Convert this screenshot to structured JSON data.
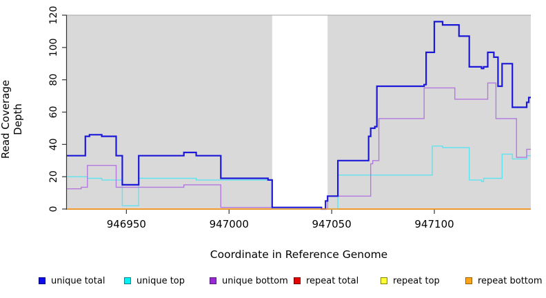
{
  "axes": {
    "xlabel": "Coordinate in Reference Genome",
    "ylabel": "Read Coverage Depth",
    "xlim": [
      946921,
      947147
    ],
    "ylim": [
      0,
      120
    ],
    "xticks": [
      946950,
      947000,
      947050,
      947100
    ],
    "yticks": [
      0,
      20,
      40,
      60,
      80,
      100,
      120
    ],
    "plot_bg": "#d9d9d9",
    "mask_fill": "#ffffff",
    "axis_color": "#333333"
  },
  "chart_data": {
    "type": "line",
    "step_mode": "step-after",
    "title": "",
    "xlabel": "Coordinate in Reference Genome",
    "ylabel": "Read Coverage Depth",
    "xlim": [
      946921,
      947147
    ],
    "ylim": [
      0,
      120
    ],
    "grid": false,
    "masked_region": {
      "from": 947021,
      "to": 947048,
      "note": "white band over gray plot background"
    },
    "series": [
      {
        "name": "repeat total",
        "color": "#dd1111",
        "width": 1.3,
        "points": [
          [
            946921,
            0
          ]
        ]
      },
      {
        "name": "repeat top",
        "color": "#f5f500",
        "width": 1.3,
        "points": [
          [
            946921,
            0
          ]
        ]
      },
      {
        "name": "unique top",
        "color": "#5fe3ef",
        "width": 1.4,
        "points": [
          [
            946921,
            20
          ],
          [
            946931,
            19
          ],
          [
            946938,
            18
          ],
          [
            946948,
            2
          ],
          [
            946956,
            19
          ],
          [
            946984,
            18
          ],
          [
            947021,
            0
          ],
          [
            947053,
            21
          ],
          [
            947099,
            39
          ],
          [
            947104,
            38
          ],
          [
            947117,
            18
          ],
          [
            947123,
            17
          ],
          [
            947124,
            19
          ],
          [
            947133,
            34
          ],
          [
            947138,
            31
          ],
          [
            947145,
            33
          ]
        ]
      },
      {
        "name": "unique bottom",
        "color": "#b377e0",
        "width": 1.4,
        "points": [
          [
            946921,
            12.5
          ],
          [
            946928,
            13.5
          ],
          [
            946931,
            27
          ],
          [
            946945,
            13.5
          ],
          [
            946978,
            15
          ],
          [
            946996,
            1
          ],
          [
            947045,
            0
          ],
          [
            947048,
            8
          ],
          [
            947069,
            28
          ],
          [
            947070,
            30
          ],
          [
            947073,
            56
          ],
          [
            947095,
            75
          ],
          [
            947110,
            68
          ],
          [
            947126,
            78
          ],
          [
            947130,
            56
          ],
          [
            947140,
            32
          ],
          [
            947145,
            37
          ]
        ]
      },
      {
        "name": "unique total",
        "color": "#1c18d8",
        "width": 2.2,
        "points": [
          [
            946921,
            33
          ],
          [
            946930,
            45
          ],
          [
            946932,
            46
          ],
          [
            946938,
            45
          ],
          [
            946945,
            33
          ],
          [
            946948,
            15
          ],
          [
            946956,
            33
          ],
          [
            946978,
            35
          ],
          [
            946984,
            33
          ],
          [
            946996,
            19
          ],
          [
            947019,
            18
          ],
          [
            947021,
            1
          ],
          [
            947045,
            0
          ],
          [
            947047,
            5
          ],
          [
            947048,
            8
          ],
          [
            947053,
            30
          ],
          [
            947068,
            45
          ],
          [
            947069,
            50
          ],
          [
            947071,
            51
          ],
          [
            947072,
            76
          ],
          [
            947095,
            77
          ],
          [
            947096,
            97
          ],
          [
            947100,
            116
          ],
          [
            947104,
            114
          ],
          [
            947112,
            107
          ],
          [
            947117,
            88
          ],
          [
            947123,
            87
          ],
          [
            947124,
            88
          ],
          [
            947126,
            97
          ],
          [
            947129,
            94
          ],
          [
            947131,
            76
          ],
          [
            947133,
            90
          ],
          [
            947138,
            63
          ],
          [
            947145,
            66
          ],
          [
            947146,
            69
          ]
        ]
      },
      {
        "name": "repeat bottom",
        "color": "#ff9d1e",
        "width": 1.6,
        "points": [
          [
            946921,
            0
          ]
        ]
      }
    ]
  },
  "legend": {
    "items": [
      {
        "label": "unique total",
        "fill": "#0d0deb",
        "border": "#000080"
      },
      {
        "label": "unique top",
        "fill": "#00f2f2",
        "border": "#0a7d8c"
      },
      {
        "label": "unique bottom",
        "fill": "#9929d4",
        "border": "#551880"
      },
      {
        "label": "repeat total",
        "fill": "#e80000",
        "border": "#7a0000"
      },
      {
        "label": "repeat top",
        "fill": "#ffff33",
        "border": "#808000"
      },
      {
        "label": "repeat bottom",
        "fill": "#ffa317",
        "border": "#9c5f00"
      }
    ]
  }
}
